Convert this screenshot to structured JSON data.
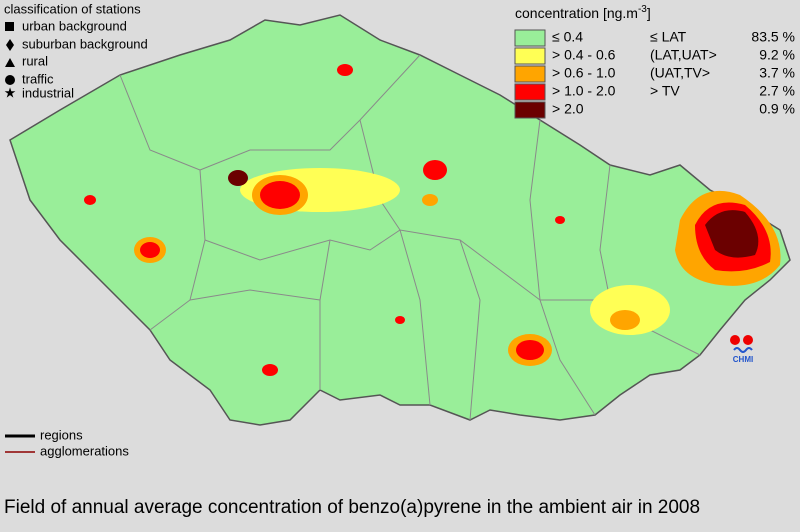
{
  "station_legend": {
    "title": "classification of stations",
    "items": [
      "urban background",
      "suburban background",
      "rural",
      "traffic",
      "industrial"
    ]
  },
  "concentration_legend": {
    "title": "concentration [ng.m",
    "title_sup": "-3",
    "title_end": "]",
    "rows": [
      {
        "range": "≤ 0.4",
        "class": "≤ LAT",
        "share": "83.5 %",
        "color": "#99ee99"
      },
      {
        "range": "> 0.4 - 0.6",
        "class": "(LAT,UAT>",
        "share": "9.2 %",
        "color": "#ffff55"
      },
      {
        "range": "> 0.6 - 1.0",
        "class": "(UAT,TV>",
        "share": "3.7 %",
        "color": "#ffa500"
      },
      {
        "range": "> 1.0 - 2.0",
        "class": "> TV",
        "share": "2.7 %",
        "color": "#ff0000"
      },
      {
        "range": "> 2.0",
        "class": "",
        "share": "0.9 %",
        "color": "#6b0000"
      }
    ]
  },
  "line_legend": [
    "regions",
    "agglomerations"
  ],
  "logo": "CHMI",
  "caption": "Field of annual average concentration of benzo(a)pyrene in the ambient air in 2008"
}
